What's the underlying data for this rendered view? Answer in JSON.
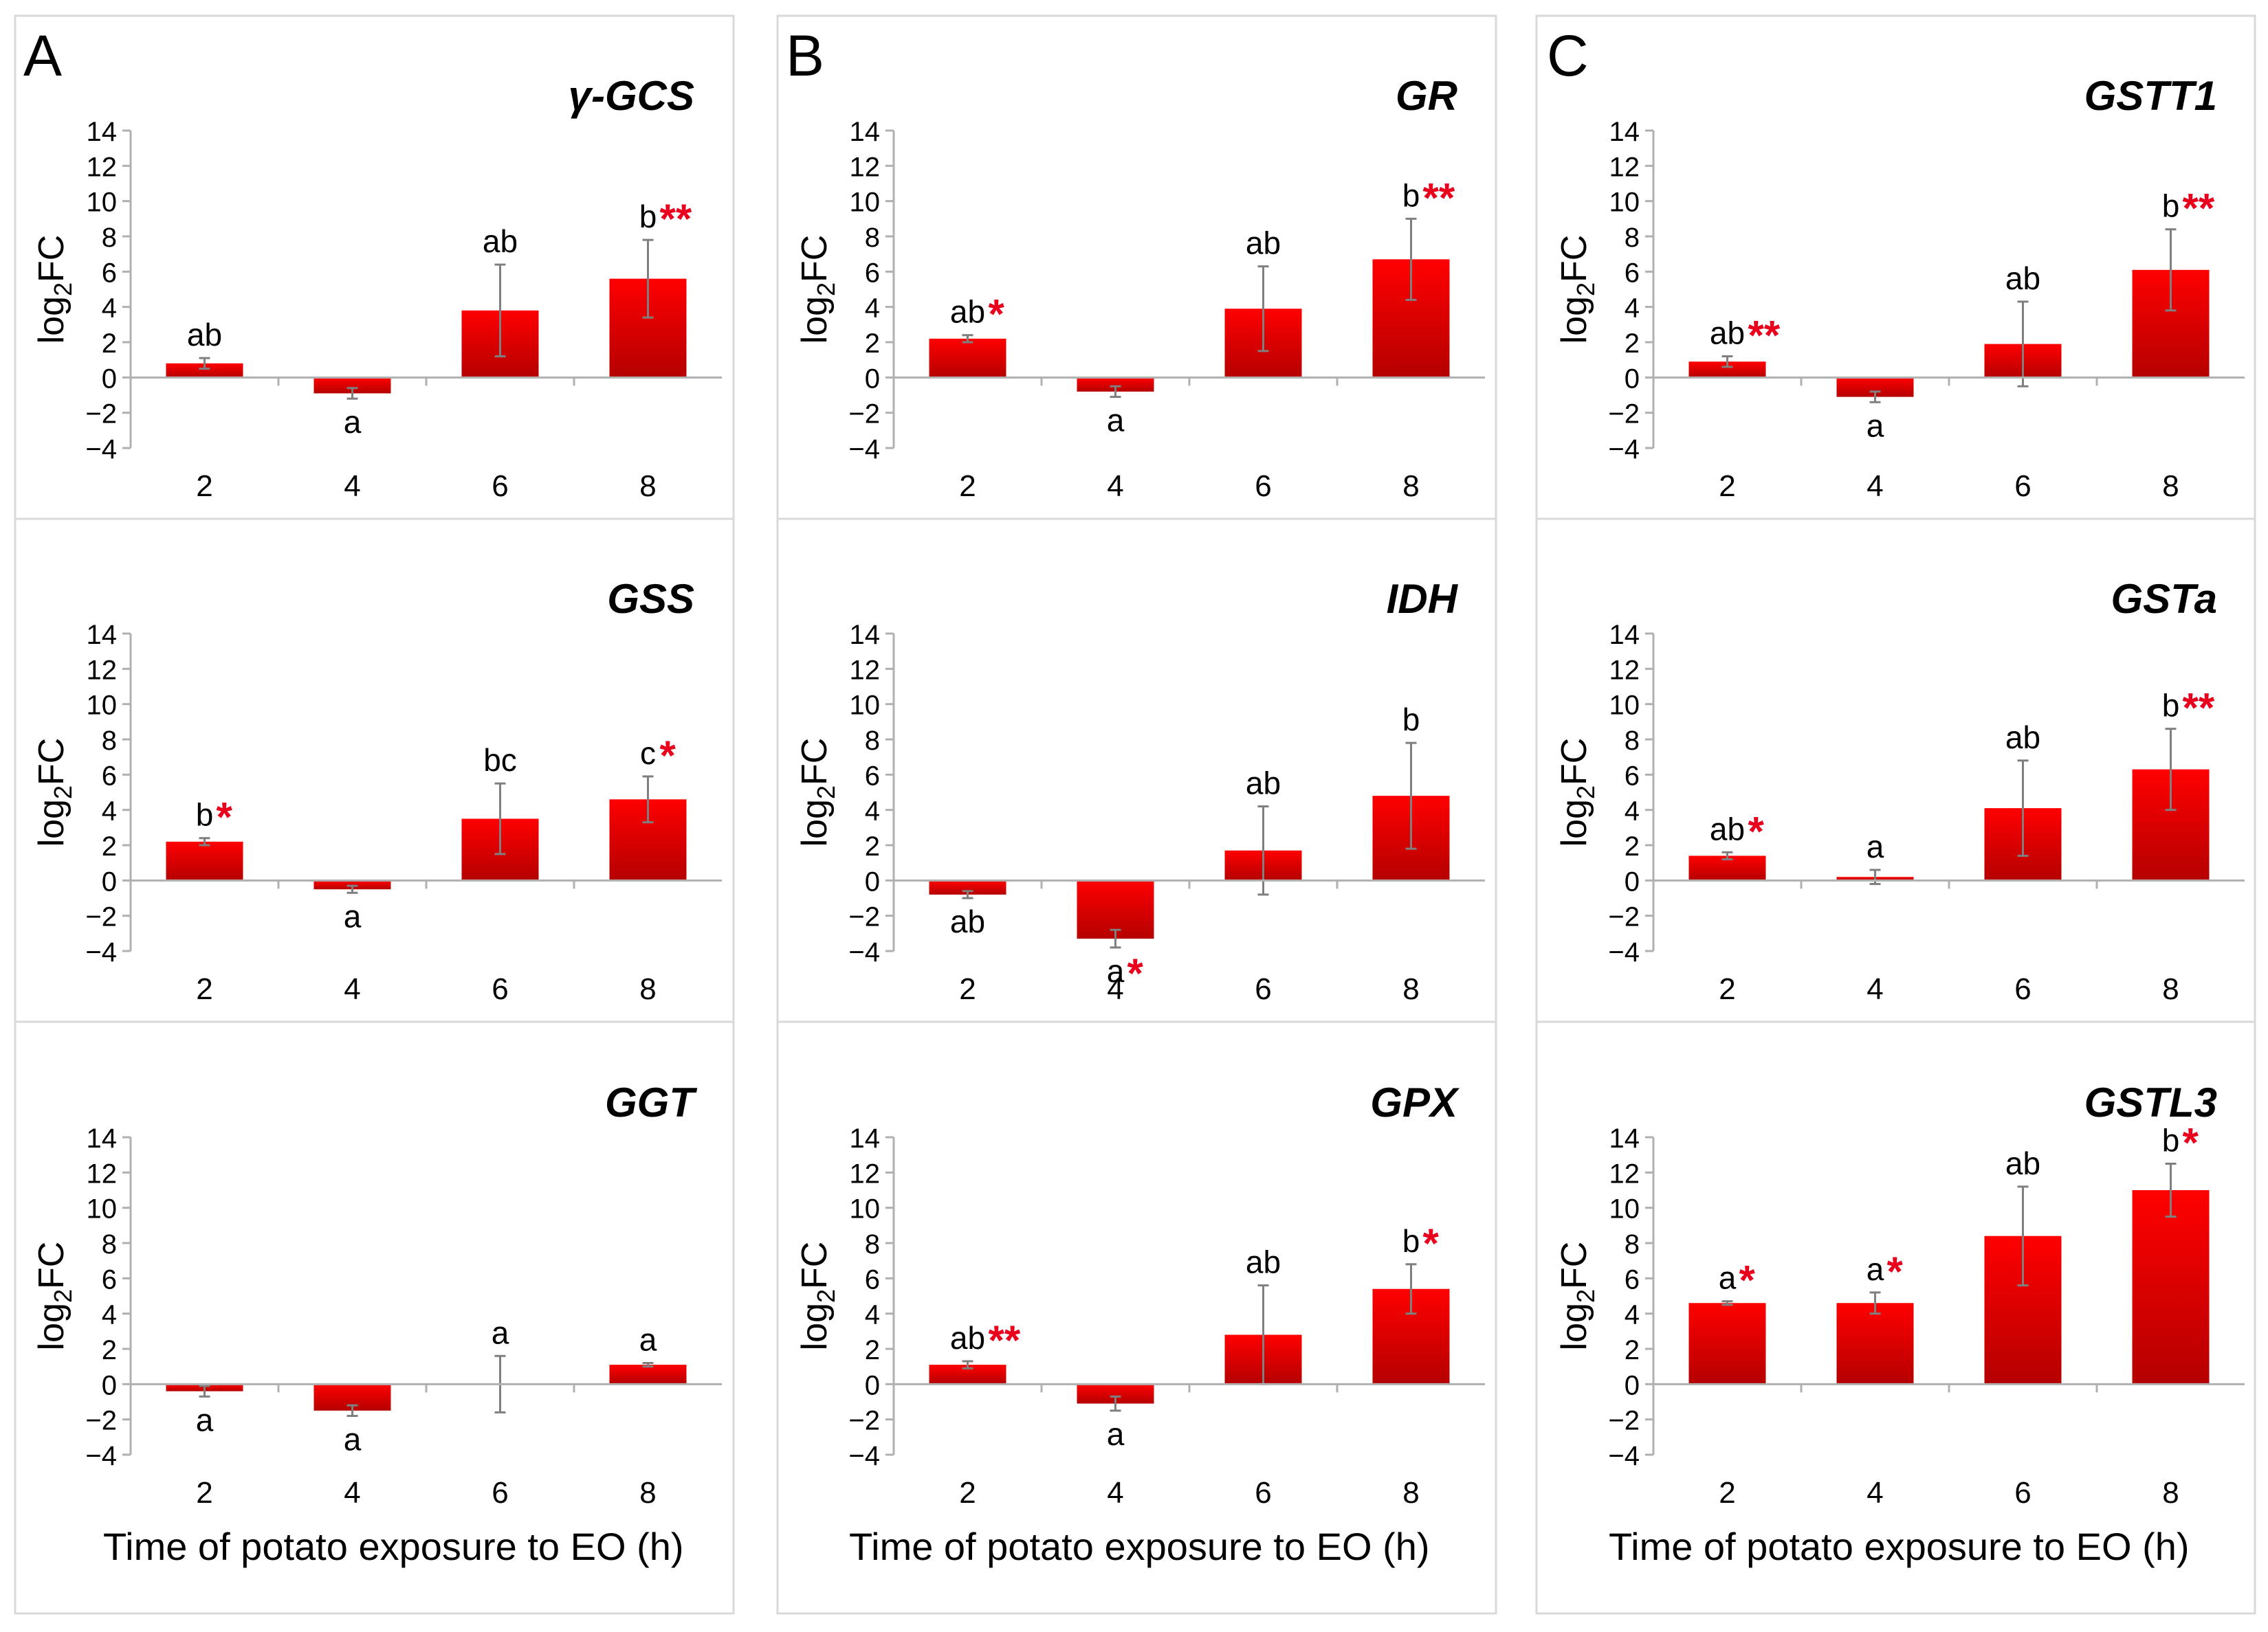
{
  "colors": {
    "bar_top": "#ff0000",
    "bar_bottom": "#b50000",
    "star": "#e8001c",
    "axis": "#b0b0b0",
    "panel_border": "#d9d9d9",
    "text": "#000000",
    "error_bar": "#7f7f7f"
  },
  "panels": [
    {
      "letter": "A",
      "xlabel": "Time of potato exposure to EO (h)"
    },
    {
      "letter": "B",
      "xlabel": "Time of potato exposure to EO (h)"
    },
    {
      "letter": "C",
      "xlabel": "Time of potato exposure to EO (h)"
    }
  ],
  "chart_data": [
    {
      "type": "bar",
      "panel": "A",
      "title": "γ-GCS",
      "ylabel": "log2FC",
      "categories": [
        "2",
        "4",
        "6",
        "8"
      ],
      "ylim": [
        -4,
        14
      ],
      "yticks": [
        -4,
        -2,
        0,
        2,
        4,
        6,
        8,
        10,
        12,
        14
      ],
      "values": [
        0.8,
        -0.9,
        3.8,
        5.6
      ],
      "errors": [
        0.3,
        0.3,
        2.6,
        2.2
      ],
      "letters": [
        "ab",
        "a",
        "ab",
        "b"
      ],
      "stars": [
        "",
        "",
        "",
        "**"
      ]
    },
    {
      "type": "bar",
      "panel": "A",
      "title": "GSS",
      "ylabel": "log2FC",
      "categories": [
        "2",
        "4",
        "6",
        "8"
      ],
      "ylim": [
        -4,
        14
      ],
      "yticks": [
        -4,
        -2,
        0,
        2,
        4,
        6,
        8,
        10,
        12,
        14
      ],
      "values": [
        2.2,
        -0.5,
        3.5,
        4.6
      ],
      "errors": [
        0.2,
        0.2,
        2.0,
        1.3
      ],
      "letters": [
        "b",
        "a",
        "bc",
        "c"
      ],
      "stars": [
        "*",
        "",
        "",
        "*"
      ]
    },
    {
      "type": "bar",
      "panel": "A",
      "title": "GGT",
      "ylabel": "log2FC",
      "categories": [
        "2",
        "4",
        "6",
        "8"
      ],
      "ylim": [
        -4,
        14
      ],
      "yticks": [
        -4,
        -2,
        0,
        2,
        4,
        6,
        8,
        10,
        12,
        14
      ],
      "values": [
        -0.4,
        -1.5,
        0.0,
        1.1
      ],
      "errors": [
        0.3,
        0.3,
        1.6,
        0.1
      ],
      "letters": [
        "a",
        "a",
        "a",
        "a"
      ],
      "stars": [
        "",
        "",
        "",
        ""
      ]
    },
    {
      "type": "bar",
      "panel": "B",
      "title": "GR",
      "ylabel": "log2FC",
      "categories": [
        "2",
        "4",
        "6",
        "8"
      ],
      "ylim": [
        -4,
        14
      ],
      "yticks": [
        -4,
        -2,
        0,
        2,
        4,
        6,
        8,
        10,
        12,
        14
      ],
      "values": [
        2.2,
        -0.8,
        3.9,
        6.7
      ],
      "errors": [
        0.2,
        0.3,
        2.4,
        2.3
      ],
      "letters": [
        "ab",
        "a",
        "ab",
        "b"
      ],
      "stars": [
        "*",
        "",
        "",
        "**"
      ]
    },
    {
      "type": "bar",
      "panel": "B",
      "title": "IDH",
      "ylabel": "log2FC",
      "categories": [
        "2",
        "4",
        "6",
        "8"
      ],
      "ylim": [
        -4,
        14
      ],
      "yticks": [
        -4,
        -2,
        0,
        2,
        4,
        6,
        8,
        10,
        12,
        14
      ],
      "values": [
        -0.8,
        -3.3,
        1.7,
        4.8
      ],
      "errors": [
        0.2,
        0.5,
        2.5,
        3.0
      ],
      "letters": [
        "ab",
        "a",
        "ab",
        "b"
      ],
      "stars": [
        "",
        "*",
        "",
        ""
      ]
    },
    {
      "type": "bar",
      "panel": "B",
      "title": "GPX",
      "ylabel": "log2FC",
      "categories": [
        "2",
        "4",
        "6",
        "8"
      ],
      "ylim": [
        -4,
        14
      ],
      "yticks": [
        -4,
        -2,
        0,
        2,
        4,
        6,
        8,
        10,
        12,
        14
      ],
      "values": [
        1.1,
        -1.1,
        2.8,
        5.4
      ],
      "errors": [
        0.2,
        0.4,
        2.8,
        1.4
      ],
      "letters": [
        "ab",
        "a",
        "ab",
        "b"
      ],
      "stars": [
        "**",
        "",
        "",
        "*"
      ]
    },
    {
      "type": "bar",
      "panel": "C",
      "title": "GSTT1",
      "ylabel": "log2FC",
      "categories": [
        "2",
        "4",
        "6",
        "8"
      ],
      "ylim": [
        -4,
        14
      ],
      "yticks": [
        -4,
        -2,
        0,
        2,
        4,
        6,
        8,
        10,
        12,
        14
      ],
      "values": [
        0.9,
        -1.1,
        1.9,
        6.1
      ],
      "errors": [
        0.3,
        0.3,
        2.4,
        2.3
      ],
      "letters": [
        "ab",
        "a",
        "ab",
        "b"
      ],
      "stars": [
        "**",
        "",
        "",
        "**"
      ]
    },
    {
      "type": "bar",
      "panel": "C",
      "title": "GSTa",
      "ylabel": "log2FC",
      "categories": [
        "2",
        "4",
        "6",
        "8"
      ],
      "ylim": [
        -4,
        14
      ],
      "yticks": [
        -4,
        -2,
        0,
        2,
        4,
        6,
        8,
        10,
        12,
        14
      ],
      "values": [
        1.4,
        0.2,
        4.1,
        6.3
      ],
      "errors": [
        0.2,
        0.4,
        2.7,
        2.3
      ],
      "letters": [
        "ab",
        "a",
        "ab",
        "b"
      ],
      "stars": [
        "*",
        "",
        "",
        "**"
      ]
    },
    {
      "type": "bar",
      "panel": "C",
      "title": "GSTL3",
      "ylabel": "log2FC",
      "categories": [
        "2",
        "4",
        "6",
        "8"
      ],
      "ylim": [
        -4,
        14
      ],
      "yticks": [
        -4,
        -2,
        0,
        2,
        4,
        6,
        8,
        10,
        12,
        14
      ],
      "values": [
        4.6,
        4.6,
        8.4,
        11.0
      ],
      "errors": [
        0.1,
        0.6,
        2.8,
        1.5
      ],
      "letters": [
        "a",
        "a",
        "ab",
        "b"
      ],
      "stars": [
        "*",
        "*",
        "",
        "*"
      ]
    }
  ]
}
